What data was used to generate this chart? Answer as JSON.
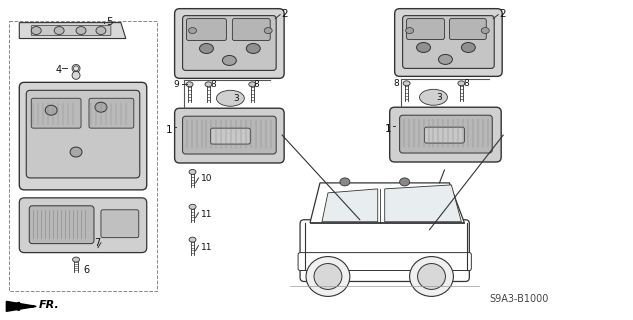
{
  "bg_color": "#f5f5f0",
  "diagram_code": "S9A3-B1000",
  "fr_label": "FR.",
  "line_color": "#333333",
  "text_color": "#111111"
}
